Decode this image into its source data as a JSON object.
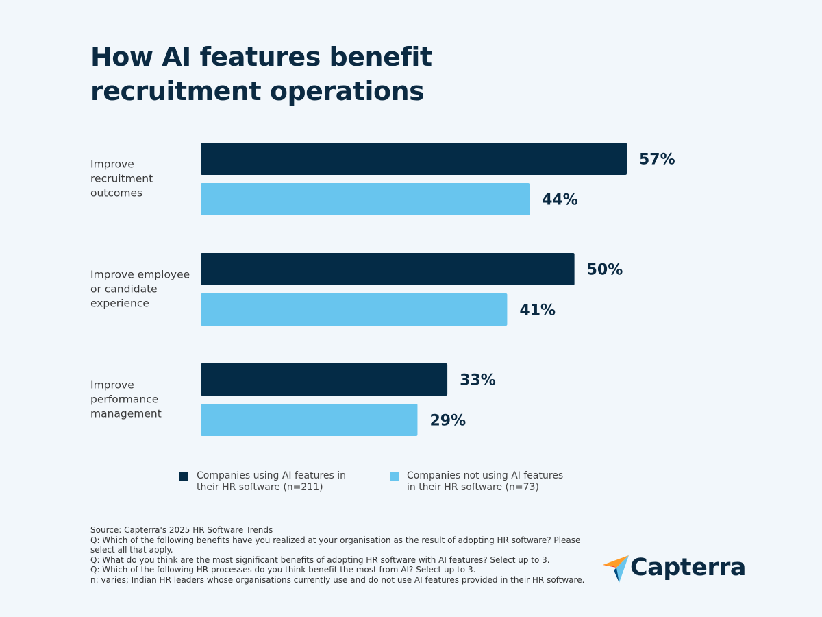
{
  "chart_data": {
    "type": "bar",
    "orientation": "horizontal",
    "title": "How AI features benefit recruitment operations",
    "categories": [
      "Improve recruitment outcomes",
      "Improve employee or candidate experience",
      "Improve performance management"
    ],
    "series": [
      {
        "name": "Companies using AI features in their HR software (n=211)",
        "color": "#042b46",
        "values": [
          57,
          50,
          33
        ],
        "value_labels": [
          "57%",
          "50%",
          "33%"
        ]
      },
      {
        "name": "Companies not using AI features in their HR software (n=73)",
        "color": "#68c5ee",
        "values": [
          44,
          41,
          29
        ],
        "value_labels": [
          "44%",
          "41%",
          "29%"
        ]
      }
    ],
    "notes": [
      "Source: Capterra's 2025 HR Software Trends",
      "Q: Which of the following benefits have you realized at your organisation as the result of adopting HR software? Please select all that apply.",
      "Q: What do you think are the most significant benefits of adopting HR software with AI features? Select up to 3.",
      "Q: Which of the following HR processes do you think benefit the most from AI? Select up to 3.",
      "n: varies; Indian HR leaders whose organisations currently use and do not use AI features provided in their HR software."
    ]
  },
  "logo": "Capterra"
}
